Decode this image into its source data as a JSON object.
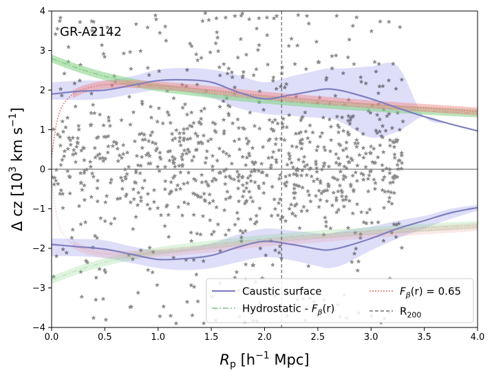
{
  "chart_data": {
    "type": "scatter",
    "annotation": "GR-A2142",
    "xlabel": "R_p [h⁻¹ Mpc]",
    "ylabel": "Δ cz [10³ km s⁻¹]",
    "xlim": [
      0,
      4
    ],
    "ylim": [
      -4,
      4
    ],
    "x_ticks": [
      "0.0",
      "0.5",
      "1.0",
      "1.5",
      "2.0",
      "2.5",
      "3.0",
      "3.5",
      "4.0"
    ],
    "y_ticks": [
      "−4",
      "−3",
      "−2",
      "−1",
      "0",
      "1",
      "2",
      "3",
      "4"
    ],
    "legend_position": "bottom-right",
    "legend": [
      {
        "label": "Caustic surface",
        "style": "solid",
        "color": "#7f7fbf"
      },
      {
        "label": "Hydrostatic - F_β(r)",
        "style": "dashdot",
        "color": "#90c890"
      },
      {
        "label": "F_β(r) = 0.65",
        "style": "dotted",
        "color": "#e07f7f"
      },
      {
        "label": "R_200",
        "style": "dashed",
        "color": "#555555"
      }
    ],
    "r200": 2.16,
    "zero_line": 0,
    "series": [
      {
        "name": "Caustic surface",
        "color": "#7f7fbf",
        "x": [
          0,
          0.25,
          0.5,
          0.75,
          1.0,
          1.25,
          1.5,
          1.75,
          2.0,
          2.25,
          2.5,
          2.6,
          2.75,
          3.0,
          3.25,
          3.5,
          3.75,
          4.0
        ],
        "y": [
          1.9,
          1.97,
          2.0,
          2.12,
          2.24,
          2.26,
          2.2,
          1.95,
          1.78,
          1.88,
          2.0,
          2.03,
          1.97,
          1.78,
          1.55,
          1.33,
          1.14,
          0.97
        ],
        "band_lower": [
          1.76,
          1.75,
          1.78,
          1.9,
          2.0,
          1.95,
          1.8,
          1.55,
          1.4,
          1.35,
          1.3,
          1.3,
          1.15,
          0.8,
          0.95,
          1.33,
          1.14,
          0.97
        ],
        "band_upper": [
          2.2,
          2.24,
          2.25,
          2.35,
          2.52,
          2.56,
          2.52,
          2.38,
          2.2,
          2.35,
          2.5,
          2.55,
          2.55,
          2.6,
          2.6,
          1.33,
          1.14,
          0.97
        ],
        "lower_y": [
          -1.9,
          -1.96,
          -2.02,
          -2.15,
          -2.28,
          -2.26,
          -2.18,
          -1.97,
          -1.82,
          -1.9,
          -2.02,
          -2.04,
          -1.96,
          -1.75,
          -1.5,
          -1.3,
          -1.1,
          -0.97
        ],
        "lower_band_lower": [
          -2.2,
          -2.2,
          -2.25,
          -2.37,
          -2.5,
          -2.55,
          -2.5,
          -2.35,
          -2.22,
          -2.3,
          -2.45,
          -2.5,
          -2.4,
          -2.05,
          -1.75,
          -1.5,
          -1.25,
          -1.05
        ],
        "lower_band_upper": [
          -1.75,
          -1.76,
          -1.8,
          -1.95,
          -2.05,
          -2.0,
          -1.87,
          -1.65,
          -1.5,
          -1.55,
          -1.62,
          -1.63,
          -1.55,
          -1.45,
          -1.3,
          -1.18,
          -1.0,
          -0.9
        ]
      },
      {
        "name": "Hydrostatic - F_β(r)",
        "color": "#90c890",
        "x": [
          0,
          0.25,
          0.5,
          0.75,
          1.0,
          1.5,
          2.0,
          2.5,
          3.0,
          3.5,
          4.0
        ],
        "y": [
          2.8,
          2.55,
          2.35,
          2.2,
          2.07,
          1.9,
          1.76,
          1.65,
          1.56,
          1.48,
          1.41
        ],
        "band_halfwidth": 0.1
      },
      {
        "name": "F_β(r) = 0.65",
        "color": "#e07f7f",
        "x": [
          0,
          0.02,
          0.05,
          0.1,
          0.2,
          0.3,
          0.45,
          0.6,
          0.8,
          1.0,
          1.5,
          2.0,
          2.5,
          3.0,
          3.5,
          4.0
        ],
        "y": [
          0.3,
          0.7,
          1.2,
          1.6,
          1.9,
          2.02,
          2.12,
          2.15,
          2.15,
          2.12,
          2.0,
          1.86,
          1.75,
          1.64,
          1.55,
          1.46
        ],
        "band_halfwidth": 0.1
      }
    ],
    "galaxies_note_count": 1000
  }
}
